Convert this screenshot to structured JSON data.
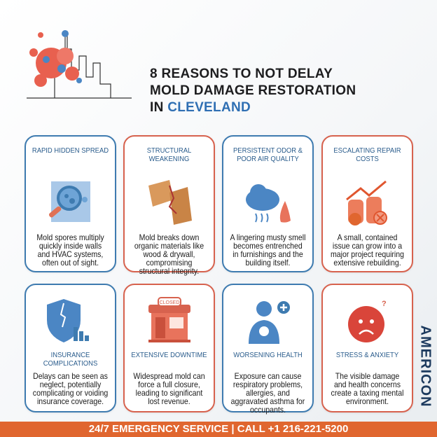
{
  "header": {
    "title_line1": "8 REASONS TO NOT DELAY",
    "title_line2": "MOLD DAMAGE RESTORATION",
    "title_line3_prefix": "IN ",
    "title_line3_highlight": "CLEVELAND"
  },
  "colors": {
    "blue": "#3e7bb0",
    "red": "#d7624e",
    "orange": "#e0662f",
    "navy": "#1c3a5e"
  },
  "cards": [
    {
      "title": "RAPID HIDDEN SPREAD",
      "text": "Mold spores multiply quickly inside walls and HVAC systems, often out of sight.",
      "icon": "magnifier-spores-icon"
    },
    {
      "title": "STRUCTURAL WEAKENING",
      "text": "Mold breaks down organic materials like wood & drywall, compromising structural integrity.",
      "icon": "cracked-wood-icon"
    },
    {
      "title": "PERSISTENT ODOR & POOR AIR QUALITY",
      "text": "A lingering musty smell becomes entrenched in furnishings and the building itself.",
      "icon": "cloud-nose-icon"
    },
    {
      "title": "ESCALATING REPAIR COSTS",
      "text": "A small, contained issue can grow into a major project requiring extensive rebuilding.",
      "icon": "coins-arrow-icon"
    },
    {
      "title": "INSURANCE COMPLICATIONS",
      "text": "Delays can be seen as neglect, potentially complicating or voiding insurance coverage.",
      "icon": "broken-shield-icon"
    },
    {
      "title": "EXTENSIVE DOWNTIME",
      "text": "Widespread mold can force a full closure, leading to significant lost revenue.",
      "icon": "closed-store-icon",
      "sign": "CLOSED"
    },
    {
      "title": "WORSENING HEALTH",
      "text": "Exposure can cause respiratory problems, allergies, and aggravated asthma for occupants.",
      "icon": "coughing-person-icon"
    },
    {
      "title": "STRESS & ANXIETY",
      "text": "The visible damage and health concerns create a taxing mental environment.",
      "icon": "worried-face-icon"
    }
  ],
  "logo": {
    "text": "AMERICON"
  },
  "footer": {
    "text": "24/7 EMERGENCY SERVICE | CALL +1 216-221-5200"
  }
}
